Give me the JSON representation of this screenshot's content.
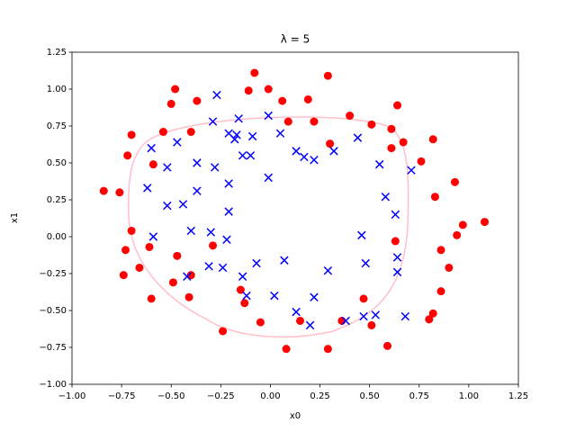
{
  "chart_data": {
    "type": "scatter",
    "title": "λ = 5",
    "xlabel": "x0",
    "ylabel": "x1",
    "xlim": [
      -1,
      1.25
    ],
    "ylim": [
      -1,
      1.25
    ],
    "xticks": [
      {
        "value": -1,
        "label": "−1.00"
      },
      {
        "value": -0.75,
        "label": "−0.75"
      },
      {
        "value": -0.5,
        "label": "−0.50"
      },
      {
        "value": -0.25,
        "label": "−0.25"
      },
      {
        "value": 0,
        "label": "0.00"
      },
      {
        "value": 0.25,
        "label": "0.25"
      },
      {
        "value": 0.5,
        "label": "0.50"
      },
      {
        "value": 0.75,
        "label": "0.75"
      },
      {
        "value": 1,
        "label": "1.00"
      },
      {
        "value": 1.25,
        "label": "1.25"
      }
    ],
    "yticks": [
      {
        "value": -1,
        "label": "−1.00"
      },
      {
        "value": -0.75,
        "label": "−0.75"
      },
      {
        "value": -0.5,
        "label": "−0.50"
      },
      {
        "value": -0.25,
        "label": "−0.25"
      },
      {
        "value": 0,
        "label": "0.00"
      },
      {
        "value": 0.25,
        "label": "0.25"
      },
      {
        "value": 0.5,
        "label": "0.50"
      },
      {
        "value": 0.75,
        "label": "0.75"
      },
      {
        "value": 1,
        "label": "1.00"
      },
      {
        "value": 1.25,
        "label": "1.25"
      }
    ],
    "series": [
      {
        "color": "#ff0000",
        "marker": "o",
        "x": [
          -0.08,
          -0.48,
          -0.5,
          -0.37,
          -0.01,
          -0.11,
          0.29,
          0.06,
          0.19,
          0.09,
          0.22,
          0.4,
          0.51,
          0.64,
          0.61,
          0.67,
          0.61,
          0.76,
          0.82,
          0.93,
          0.83,
          0.97,
          0.94,
          1.08,
          0.86,
          0.9,
          0.86,
          0.82,
          0.8,
          0.59,
          0.51,
          0.47,
          0.36,
          0.15,
          0.29,
          0.08,
          -0.05,
          -0.13,
          -0.15,
          -0.24,
          -0.4,
          -0.49,
          -0.47,
          -0.41,
          -0.61,
          -0.6,
          -0.66,
          -0.74,
          -0.73,
          -0.7,
          -0.84,
          -0.76,
          -0.72,
          -0.7,
          -0.59,
          -0.54,
          -0.4,
          -0.29,
          0.3,
          0.63
        ],
        "values": [
          1.11,
          1.0,
          0.9,
          0.92,
          1.0,
          0.99,
          1.09,
          0.92,
          0.93,
          0.78,
          0.78,
          0.82,
          0.76,
          0.89,
          0.73,
          0.64,
          0.6,
          0.51,
          0.66,
          0.37,
          0.27,
          0.08,
          0.01,
          0.1,
          -0.09,
          -0.21,
          -0.37,
          -0.52,
          -0.56,
          -0.74,
          -0.6,
          -0.42,
          -0.57,
          -0.57,
          -0.76,
          -0.76,
          -0.58,
          -0.45,
          -0.36,
          -0.64,
          -0.26,
          -0.31,
          -0.13,
          -0.41,
          -0.07,
          -0.42,
          -0.21,
          -0.26,
          -0.09,
          0.04,
          0.31,
          0.3,
          0.55,
          0.69,
          0.49,
          0.71,
          0.71,
          -0.06,
          0.63,
          -0.03
        ]
      },
      {
        "color": "#0000ff",
        "marker": "x",
        "x": [
          -0.27,
          -0.29,
          -0.16,
          -0.01,
          -0.21,
          -0.18,
          -0.17,
          -0.09,
          0.05,
          0.13,
          0.17,
          0.22,
          0.32,
          0.44,
          0.55,
          0.71,
          0.58,
          0.63,
          0.46,
          0.48,
          0.64,
          0.64,
          0.53,
          0.47,
          0.68,
          0.38,
          0.22,
          0.13,
          0.29,
          0.07,
          0.02,
          -0.07,
          -0.14,
          -0.12,
          0.2,
          -0.22,
          -0.21,
          -0.3,
          -0.24,
          -0.31,
          -0.42,
          -0.4,
          -0.52,
          -0.44,
          -0.37,
          -0.37,
          -0.28,
          -0.21,
          -0.14,
          -0.01,
          -0.6,
          -0.62,
          -0.59,
          -0.52,
          -0.47,
          -0.1
        ],
        "values": [
          0.96,
          0.78,
          0.8,
          0.82,
          0.7,
          0.66,
          0.69,
          0.68,
          0.7,
          0.58,
          0.54,
          0.52,
          0.58,
          0.67,
          0.49,
          0.45,
          0.27,
          0.15,
          0.01,
          -0.18,
          -0.14,
          -0.24,
          -0.53,
          -0.54,
          -0.54,
          -0.57,
          -0.41,
          -0.51,
          -0.23,
          -0.16,
          -0.4,
          -0.18,
          -0.27,
          -0.4,
          -0.6,
          -0.02,
          0.17,
          0.03,
          -0.21,
          -0.2,
          -0.27,
          0.04,
          0.21,
          0.22,
          0.31,
          0.5,
          0.47,
          0.36,
          0.55,
          0.4,
          0.6,
          0.33,
          0.0,
          0.47,
          0.64,
          0.55
        ]
      }
    ]
  }
}
